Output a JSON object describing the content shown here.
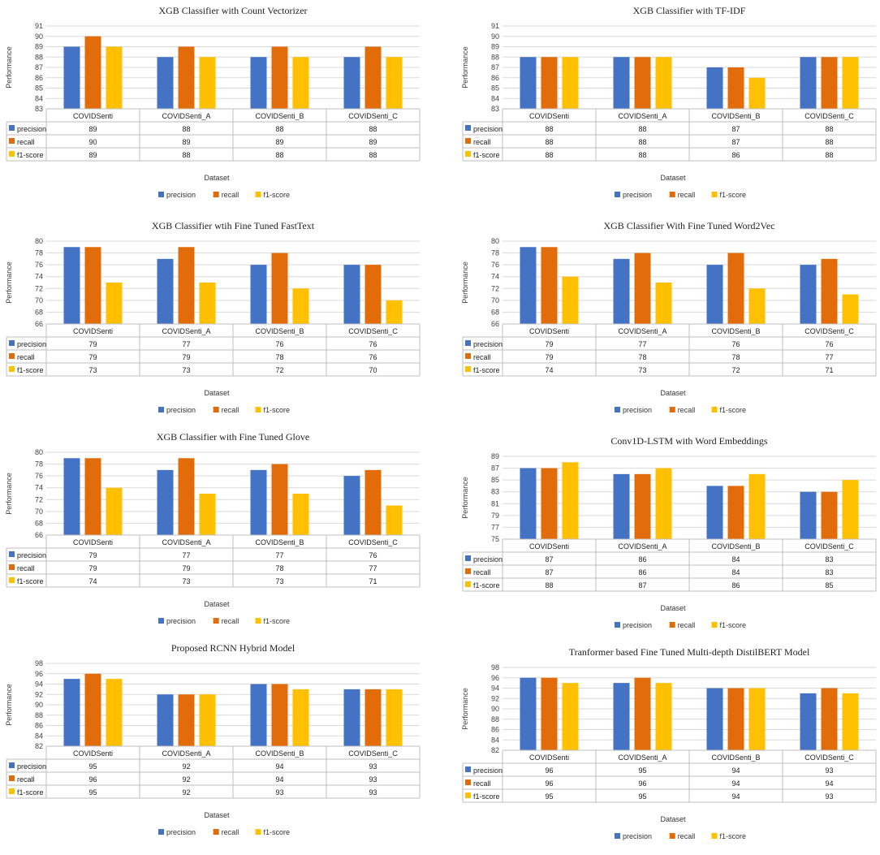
{
  "chart_data": [
    {
      "type": "bar",
      "title": "XGB Classifier with Count Vectorizer",
      "xlabel": "Dataset",
      "ylabel": "Performance",
      "categories": [
        "COVIDSenti",
        "COVIDSenti_A",
        "COVIDSenti_B",
        "COVIDSenti_C"
      ],
      "ylim": [
        83,
        91
      ],
      "ystep": 1,
      "series": [
        {
          "name": "precision",
          "values": [
            89,
            88,
            88,
            88
          ]
        },
        {
          "name": "recall",
          "values": [
            90,
            89,
            89,
            89
          ]
        },
        {
          "name": "f1-score",
          "values": [
            89,
            88,
            88,
            88
          ]
        }
      ]
    },
    {
      "type": "bar",
      "title": "XGB Classifier with TF-IDF",
      "xlabel": "Dataset",
      "ylabel": "Performance",
      "categories": [
        "COVIDSenti",
        "COVIDSenti_A",
        "COVIDSenti_B",
        "COVIDSenti_C"
      ],
      "ylim": [
        83,
        91
      ],
      "ystep": 1,
      "series": [
        {
          "name": "precision",
          "values": [
            88,
            88,
            87,
            88
          ]
        },
        {
          "name": "recall",
          "values": [
            88,
            88,
            87,
            88
          ]
        },
        {
          "name": "f1-score",
          "values": [
            88,
            88,
            86,
            88
          ]
        }
      ]
    },
    {
      "type": "bar",
      "title": "XGB Classifier wtih Fine Tuned FastText",
      "xlabel": "Dataset",
      "ylabel": "Performance",
      "categories": [
        "COVIDSenti",
        "COVIDSenti_A",
        "COVIDSenti_B",
        "COVIDSenti_C"
      ],
      "ylim": [
        66,
        80
      ],
      "ystep": 2,
      "series": [
        {
          "name": "precision",
          "values": [
            79,
            77,
            76,
            76
          ]
        },
        {
          "name": "recall",
          "values": [
            79,
            79,
            78,
            76
          ]
        },
        {
          "name": "f1-score",
          "values": [
            73,
            73,
            72,
            70
          ]
        }
      ]
    },
    {
      "type": "bar",
      "title": "XGB Classifier With Fine Tuned Word2Vec",
      "xlabel": "Dataset",
      "ylabel": "Performance",
      "categories": [
        "COVIDSenti",
        "COVIDSenti_A",
        "COVIDSenti_B",
        "COVIDSenti_C"
      ],
      "ylim": [
        66,
        80
      ],
      "ystep": 2,
      "series": [
        {
          "name": "precision",
          "values": [
            79,
            77,
            76,
            76
          ]
        },
        {
          "name": "recall",
          "values": [
            79,
            78,
            78,
            77
          ]
        },
        {
          "name": "f1-score",
          "values": [
            74,
            73,
            72,
            71
          ]
        }
      ]
    },
    {
      "type": "bar",
      "title": "XGB Classifier with Fine Tuned Glove",
      "xlabel": "Dataset",
      "ylabel": "Performance",
      "categories": [
        "COVIDSenti",
        "COVIDSenti_A",
        "COVIDSenti_B",
        "COVIDSenti_C"
      ],
      "ylim": [
        66,
        80
      ],
      "ystep": 2,
      "series": [
        {
          "name": "precision",
          "values": [
            79,
            77,
            77,
            76
          ]
        },
        {
          "name": "recall",
          "values": [
            79,
            79,
            78,
            77
          ]
        },
        {
          "name": "f1-score",
          "values": [
            74,
            73,
            73,
            71
          ]
        }
      ]
    },
    {
      "type": "bar",
      "title": "Conv1D-LSTM with Word Embeddings",
      "xlabel": "Dataset",
      "ylabel": "Performance",
      "categories": [
        "COVIDSenti",
        "COVIDSenti_A",
        "COVIDSenti_B",
        "COVIDSenti_C"
      ],
      "ylim": [
        75,
        89
      ],
      "ystep": 2,
      "series": [
        {
          "name": "precision",
          "values": [
            87,
            86,
            84,
            83
          ]
        },
        {
          "name": "recall",
          "values": [
            87,
            86,
            84,
            83
          ]
        },
        {
          "name": "f1-score",
          "values": [
            88,
            87,
            86,
            85
          ]
        }
      ]
    },
    {
      "type": "bar",
      "title": "Proposed RCNN Hybrid Model",
      "xlabel": "Dataset",
      "ylabel": "Performance",
      "categories": [
        "COVIDSenti",
        "COVIDSenti_A",
        "COVIDSenti_B",
        "COVIDSenti_C"
      ],
      "ylim": [
        82,
        98
      ],
      "ystep": 2,
      "series": [
        {
          "name": "precision",
          "values": [
            95,
            92,
            94,
            93
          ]
        },
        {
          "name": "recall",
          "values": [
            96,
            92,
            94,
            93
          ]
        },
        {
          "name": "f1-score",
          "values": [
            95,
            92,
            93,
            93
          ]
        }
      ]
    },
    {
      "type": "bar",
      "title": "Tranformer based Fine Tuned Multi-depth DistilBERT Model",
      "xlabel": "Dataset",
      "ylabel": "Performance",
      "categories": [
        "COVIDSenti",
        "COVIDSenti_A",
        "COVIDSenti_B",
        "COVIDSenti_C"
      ],
      "ylim": [
        82,
        98
      ],
      "ystep": 2,
      "series": [
        {
          "name": "precision",
          "values": [
            96,
            95,
            94,
            93
          ]
        },
        {
          "name": "recall",
          "values": [
            96,
            96,
            94,
            94
          ]
        },
        {
          "name": "f1-score",
          "values": [
            95,
            95,
            94,
            93
          ]
        }
      ]
    }
  ],
  "colors": {
    "precision": "#4472C4",
    "recall": "#E36C0A",
    "f1-score": "#FFC000",
    "gridline": "#D9D9D9",
    "border": "#BFBFBF"
  }
}
